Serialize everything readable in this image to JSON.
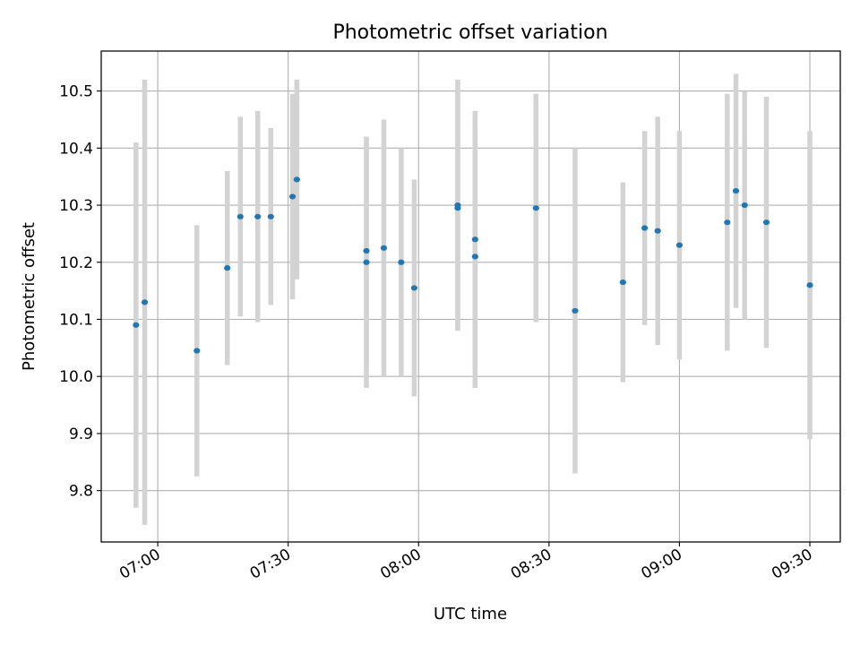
{
  "chart_data": {
    "type": "scatter",
    "title": "Photometric offset variation",
    "xlabel": "UTC time",
    "ylabel": "Photometric offset",
    "x_is_time": true,
    "xlim": [
      "06:47",
      "09:37"
    ],
    "ylim": [
      9.71,
      10.57
    ],
    "xticks": [
      "07:00",
      "07:30",
      "08:00",
      "08:30",
      "09:00",
      "09:30"
    ],
    "yticks": [
      "9.8",
      "9.9",
      "10.0",
      "10.1",
      "10.2",
      "10.3",
      "10.4",
      "10.5"
    ],
    "grid": true,
    "colors": {
      "point": "#1f77b4",
      "errorbar": "#d3d3d3",
      "grid": "#b0b0b0",
      "axes": "#000000"
    },
    "points": [
      {
        "time": "06:55",
        "y": 10.09,
        "err": 0.32
      },
      {
        "time": "06:57",
        "y": 10.13,
        "err": 0.39
      },
      {
        "time": "07:09",
        "y": 10.045,
        "err": 0.22
      },
      {
        "time": "07:16",
        "y": 10.19,
        "err": 0.17
      },
      {
        "time": "07:19",
        "y": 10.28,
        "err": 0.175
      },
      {
        "time": "07:23",
        "y": 10.28,
        "err": 0.185
      },
      {
        "time": "07:26",
        "y": 10.28,
        "err": 0.155
      },
      {
        "time": "07:31",
        "y": 10.315,
        "err": 0.18
      },
      {
        "time": "07:32",
        "y": 10.345,
        "err": 0.175
      },
      {
        "time": "07:48",
        "y": 10.2,
        "err": 0.22
      },
      {
        "time": "07:48",
        "y": 10.22,
        "err": 0.2
      },
      {
        "time": "07:52",
        "y": 10.225,
        "err": 0.225
      },
      {
        "time": "07:56",
        "y": 10.2,
        "err": 0.2
      },
      {
        "time": "07:59",
        "y": 10.155,
        "err": 0.19
      },
      {
        "time": "08:09",
        "y": 10.3,
        "err": 0.22
      },
      {
        "time": "08:09",
        "y": 10.295,
        "err": 0.21
      },
      {
        "time": "08:13",
        "y": 10.21,
        "err": 0.23
      },
      {
        "time": "08:13",
        "y": 10.24,
        "err": 0.225
      },
      {
        "time": "08:27",
        "y": 10.295,
        "err": 0.2
      },
      {
        "time": "08:36",
        "y": 10.115,
        "err": 0.285
      },
      {
        "time": "08:47",
        "y": 10.165,
        "err": 0.175
      },
      {
        "time": "08:52",
        "y": 10.26,
        "err": 0.17
      },
      {
        "time": "08:55",
        "y": 10.255,
        "err": 0.2
      },
      {
        "time": "09:00",
        "y": 10.23,
        "err": 0.2
      },
      {
        "time": "09:11",
        "y": 10.27,
        "err": 0.225
      },
      {
        "time": "09:13",
        "y": 10.325,
        "err": 0.205
      },
      {
        "time": "09:15",
        "y": 10.3,
        "err": 0.2
      },
      {
        "time": "09:20",
        "y": 10.27,
        "err": 0.22
      },
      {
        "time": "09:30",
        "y": 10.16,
        "err": 0.27
      }
    ]
  }
}
